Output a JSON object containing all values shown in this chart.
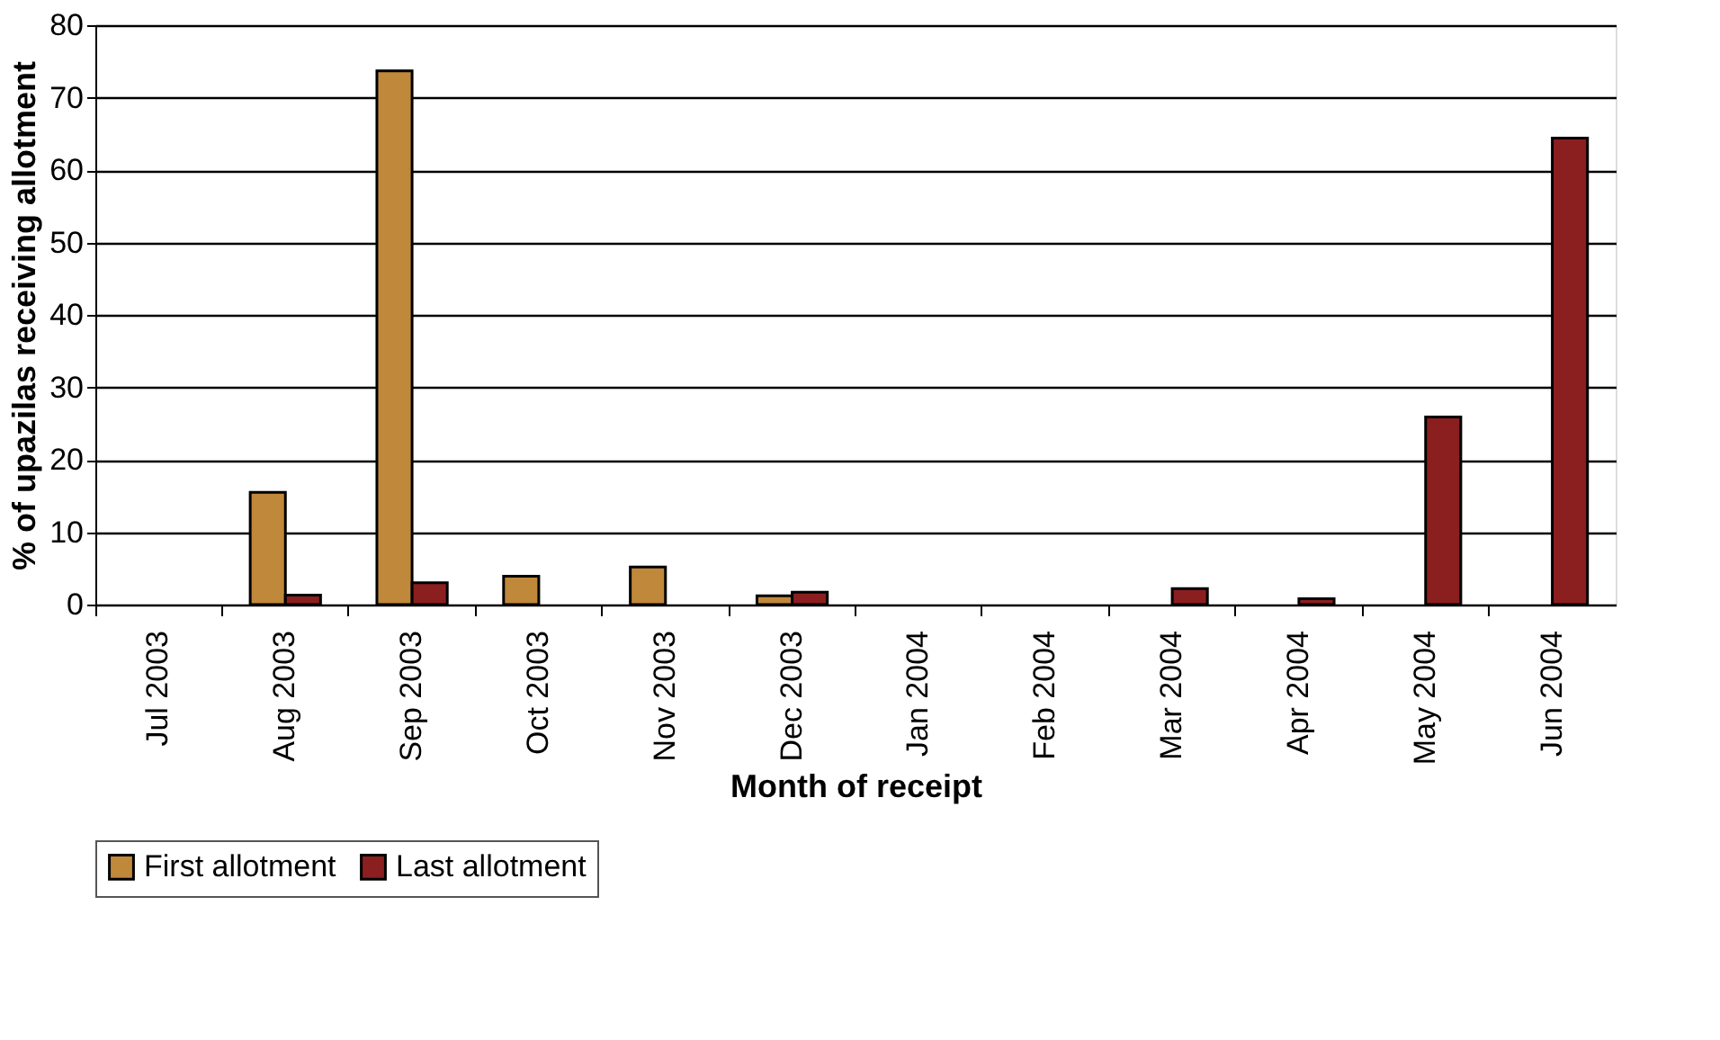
{
  "chart_data": {
    "type": "bar",
    "xlabel": "Month of receipt",
    "ylabel": "% of upazilas receiving allotment",
    "categories": [
      "Jul 2003",
      "Aug 2003",
      "Sep 2003",
      "Oct 2003",
      "Nov 2003",
      "Dec 2003",
      "Jan 2004",
      "Feb 2004",
      "Mar 2004",
      "Apr 2004",
      "May 2004",
      "Jun 2004"
    ],
    "series": [
      {
        "name": "First allotment",
        "color": "#c0883a",
        "values": [
          null,
          15.5,
          73.7,
          3.9,
          5.2,
          1.2,
          null,
          null,
          null,
          null,
          null,
          null
        ]
      },
      {
        "name": "Last allotment",
        "color": "#8b1f1f",
        "values": [
          null,
          1.3,
          3.0,
          null,
          null,
          1.7,
          null,
          null,
          2.2,
          0.8,
          25.9,
          64.4
        ]
      }
    ],
    "ylim": [
      0,
      80
    ],
    "yticks": [
      0,
      10,
      20,
      30,
      40,
      50,
      60,
      70,
      80
    ],
    "grid": "y",
    "legend": "bottom"
  }
}
